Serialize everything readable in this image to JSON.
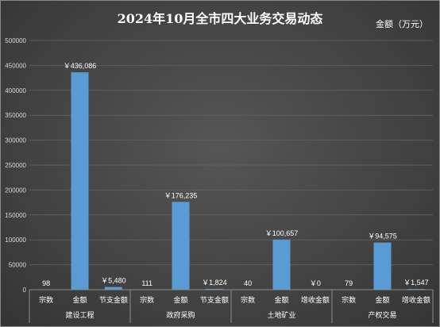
{
  "chart_data": {
    "type": "bar",
    "title": "2024年10月全市四大业务交易动态",
    "unit_label": "金额（万元）",
    "ylim": [
      0,
      500000
    ],
    "yticks": [
      "0",
      "50000",
      "100000",
      "150000",
      "200000",
      "250000",
      "300000",
      "350000",
      "400000",
      "450000",
      "500000"
    ],
    "grid": true,
    "bar_color": "#5b9bd5",
    "groups": [
      {
        "name": "建设工程",
        "categories": [
          "宗数",
          "金额",
          "节支金额"
        ],
        "values": [
          98,
          436086,
          5480
        ],
        "labels": [
          "98",
          "￥436,086",
          "￥5,480"
        ]
      },
      {
        "name": "政府采购",
        "categories": [
          "宗数",
          "金额",
          "节支金额"
        ],
        "values": [
          111,
          176235,
          1824
        ],
        "labels": [
          "111",
          "￥176,235",
          "￥1,824"
        ]
      },
      {
        "name": "土地矿业",
        "categories": [
          "宗数",
          "金额",
          "增收金额"
        ],
        "values": [
          40,
          100657,
          0
        ],
        "labels": [
          "40",
          "￥100,657",
          "￥0"
        ]
      },
      {
        "name": "产权交易",
        "categories": [
          "宗数",
          "金额",
          "增收金额"
        ],
        "values": [
          79,
          94575,
          1547
        ],
        "labels": [
          "79",
          "￥94,575",
          "￥1,547"
        ]
      }
    ]
  }
}
